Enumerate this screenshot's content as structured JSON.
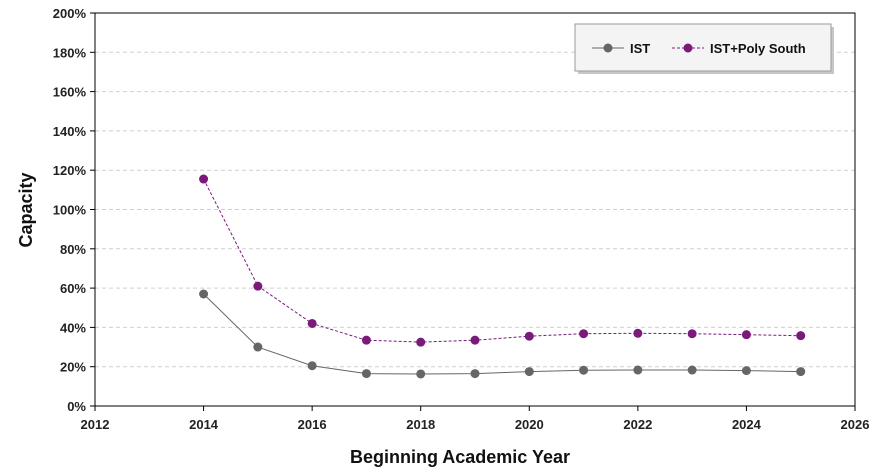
{
  "chart_data": {
    "type": "line",
    "title": "",
    "xlabel": "Beginning Academic Year",
    "ylabel": "Capacity",
    "xlim": [
      2012,
      2026
    ],
    "ylim": [
      0,
      200
    ],
    "x_ticks": [
      "2012",
      "2014",
      "2016",
      "2018",
      "2020",
      "2022",
      "2024",
      "2026"
    ],
    "y_ticks": [
      "0%",
      "20%",
      "40%",
      "60%",
      "80%",
      "100%",
      "120%",
      "140%",
      "160%",
      "180%",
      "200%"
    ],
    "y_unit": "%",
    "grid": "horizontal dashed",
    "legend_position": "top-right",
    "x": [
      2014,
      2015,
      2016,
      2017,
      2018,
      2019,
      2020,
      2021,
      2022,
      2023,
      2024,
      2025
    ],
    "series": [
      {
        "name": "IST",
        "color": "#666666",
        "line_style": "solid",
        "values": [
          57,
          30,
          20.5,
          16.5,
          16.3,
          16.5,
          17.5,
          18.2,
          18.3,
          18.3,
          18,
          17.5
        ]
      },
      {
        "name": "IST+Poly South",
        "color": "#7a1a7a",
        "line_style": "dotted",
        "values": [
          115.5,
          61,
          42,
          33.5,
          32.5,
          33.5,
          35.5,
          36.8,
          37,
          36.8,
          36.3,
          35.8
        ]
      }
    ]
  }
}
